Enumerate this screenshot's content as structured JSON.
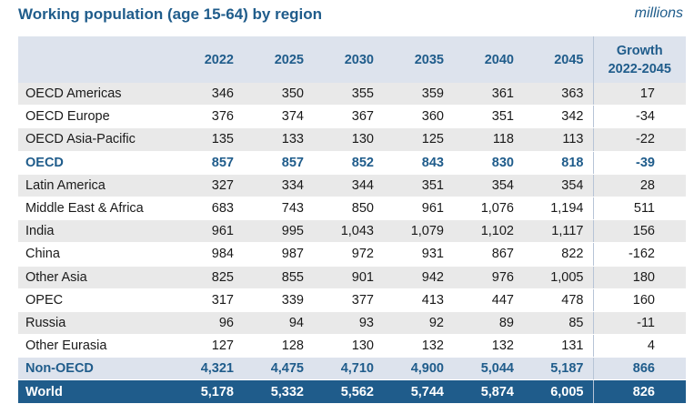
{
  "title": "Working population (age 15-64) by region",
  "unit": "millions",
  "table": {
    "headers": [
      "",
      "2022",
      "2025",
      "2030",
      "2035",
      "2040",
      "2045"
    ],
    "growth_header": [
      "Growth",
      "2022-2045"
    ],
    "rows": [
      {
        "region": "OECD Americas",
        "values": [
          "346",
          "350",
          "355",
          "359",
          "361",
          "363"
        ],
        "growth": "17"
      },
      {
        "region": "OECD Europe",
        "values": [
          "376",
          "374",
          "367",
          "360",
          "351",
          "342"
        ],
        "growth": "-34"
      },
      {
        "region": "OECD Asia-Pacific",
        "values": [
          "135",
          "133",
          "130",
          "125",
          "118",
          "113"
        ],
        "growth": "-22"
      },
      {
        "region": "OECD",
        "values": [
          "857",
          "857",
          "852",
          "843",
          "830",
          "818"
        ],
        "growth": "-39"
      },
      {
        "region": "Latin America",
        "values": [
          "327",
          "334",
          "344",
          "351",
          "354",
          "354"
        ],
        "growth": "28"
      },
      {
        "region": "Middle East & Africa",
        "values": [
          "683",
          "743",
          "850",
          "961",
          "1,076",
          "1,194"
        ],
        "growth": "511"
      },
      {
        "region": "India",
        "values": [
          "961",
          "995",
          "1,043",
          "1,079",
          "1,102",
          "1,117"
        ],
        "growth": "156"
      },
      {
        "region": "China",
        "values": [
          "984",
          "987",
          "972",
          "931",
          "867",
          "822"
        ],
        "growth": "-162"
      },
      {
        "region": "Other Asia",
        "values": [
          "825",
          "855",
          "901",
          "942",
          "976",
          "1,005"
        ],
        "growth": "180"
      },
      {
        "region": "OPEC",
        "values": [
          "317",
          "339",
          "377",
          "413",
          "447",
          "478"
        ],
        "growth": "160"
      },
      {
        "region": "Russia",
        "values": [
          "96",
          "94",
          "93",
          "92",
          "89",
          "85"
        ],
        "growth": "-11"
      },
      {
        "region": "Other Eurasia",
        "values": [
          "127",
          "128",
          "130",
          "132",
          "132",
          "131"
        ],
        "growth": "4"
      },
      {
        "region": "Non-OECD",
        "values": [
          "4,321",
          "4,475",
          "4,710",
          "4,900",
          "5,044",
          "5,187"
        ],
        "growth": "866"
      },
      {
        "region": "World",
        "values": [
          "5,178",
          "5,332",
          "5,562",
          "5,744",
          "5,874",
          "6,005"
        ],
        "growth": "826"
      }
    ]
  },
  "colors": {
    "accent": "#1f5c8b",
    "header_bg": "#dde3ed",
    "stripe_bg": "#e9e9e9"
  }
}
